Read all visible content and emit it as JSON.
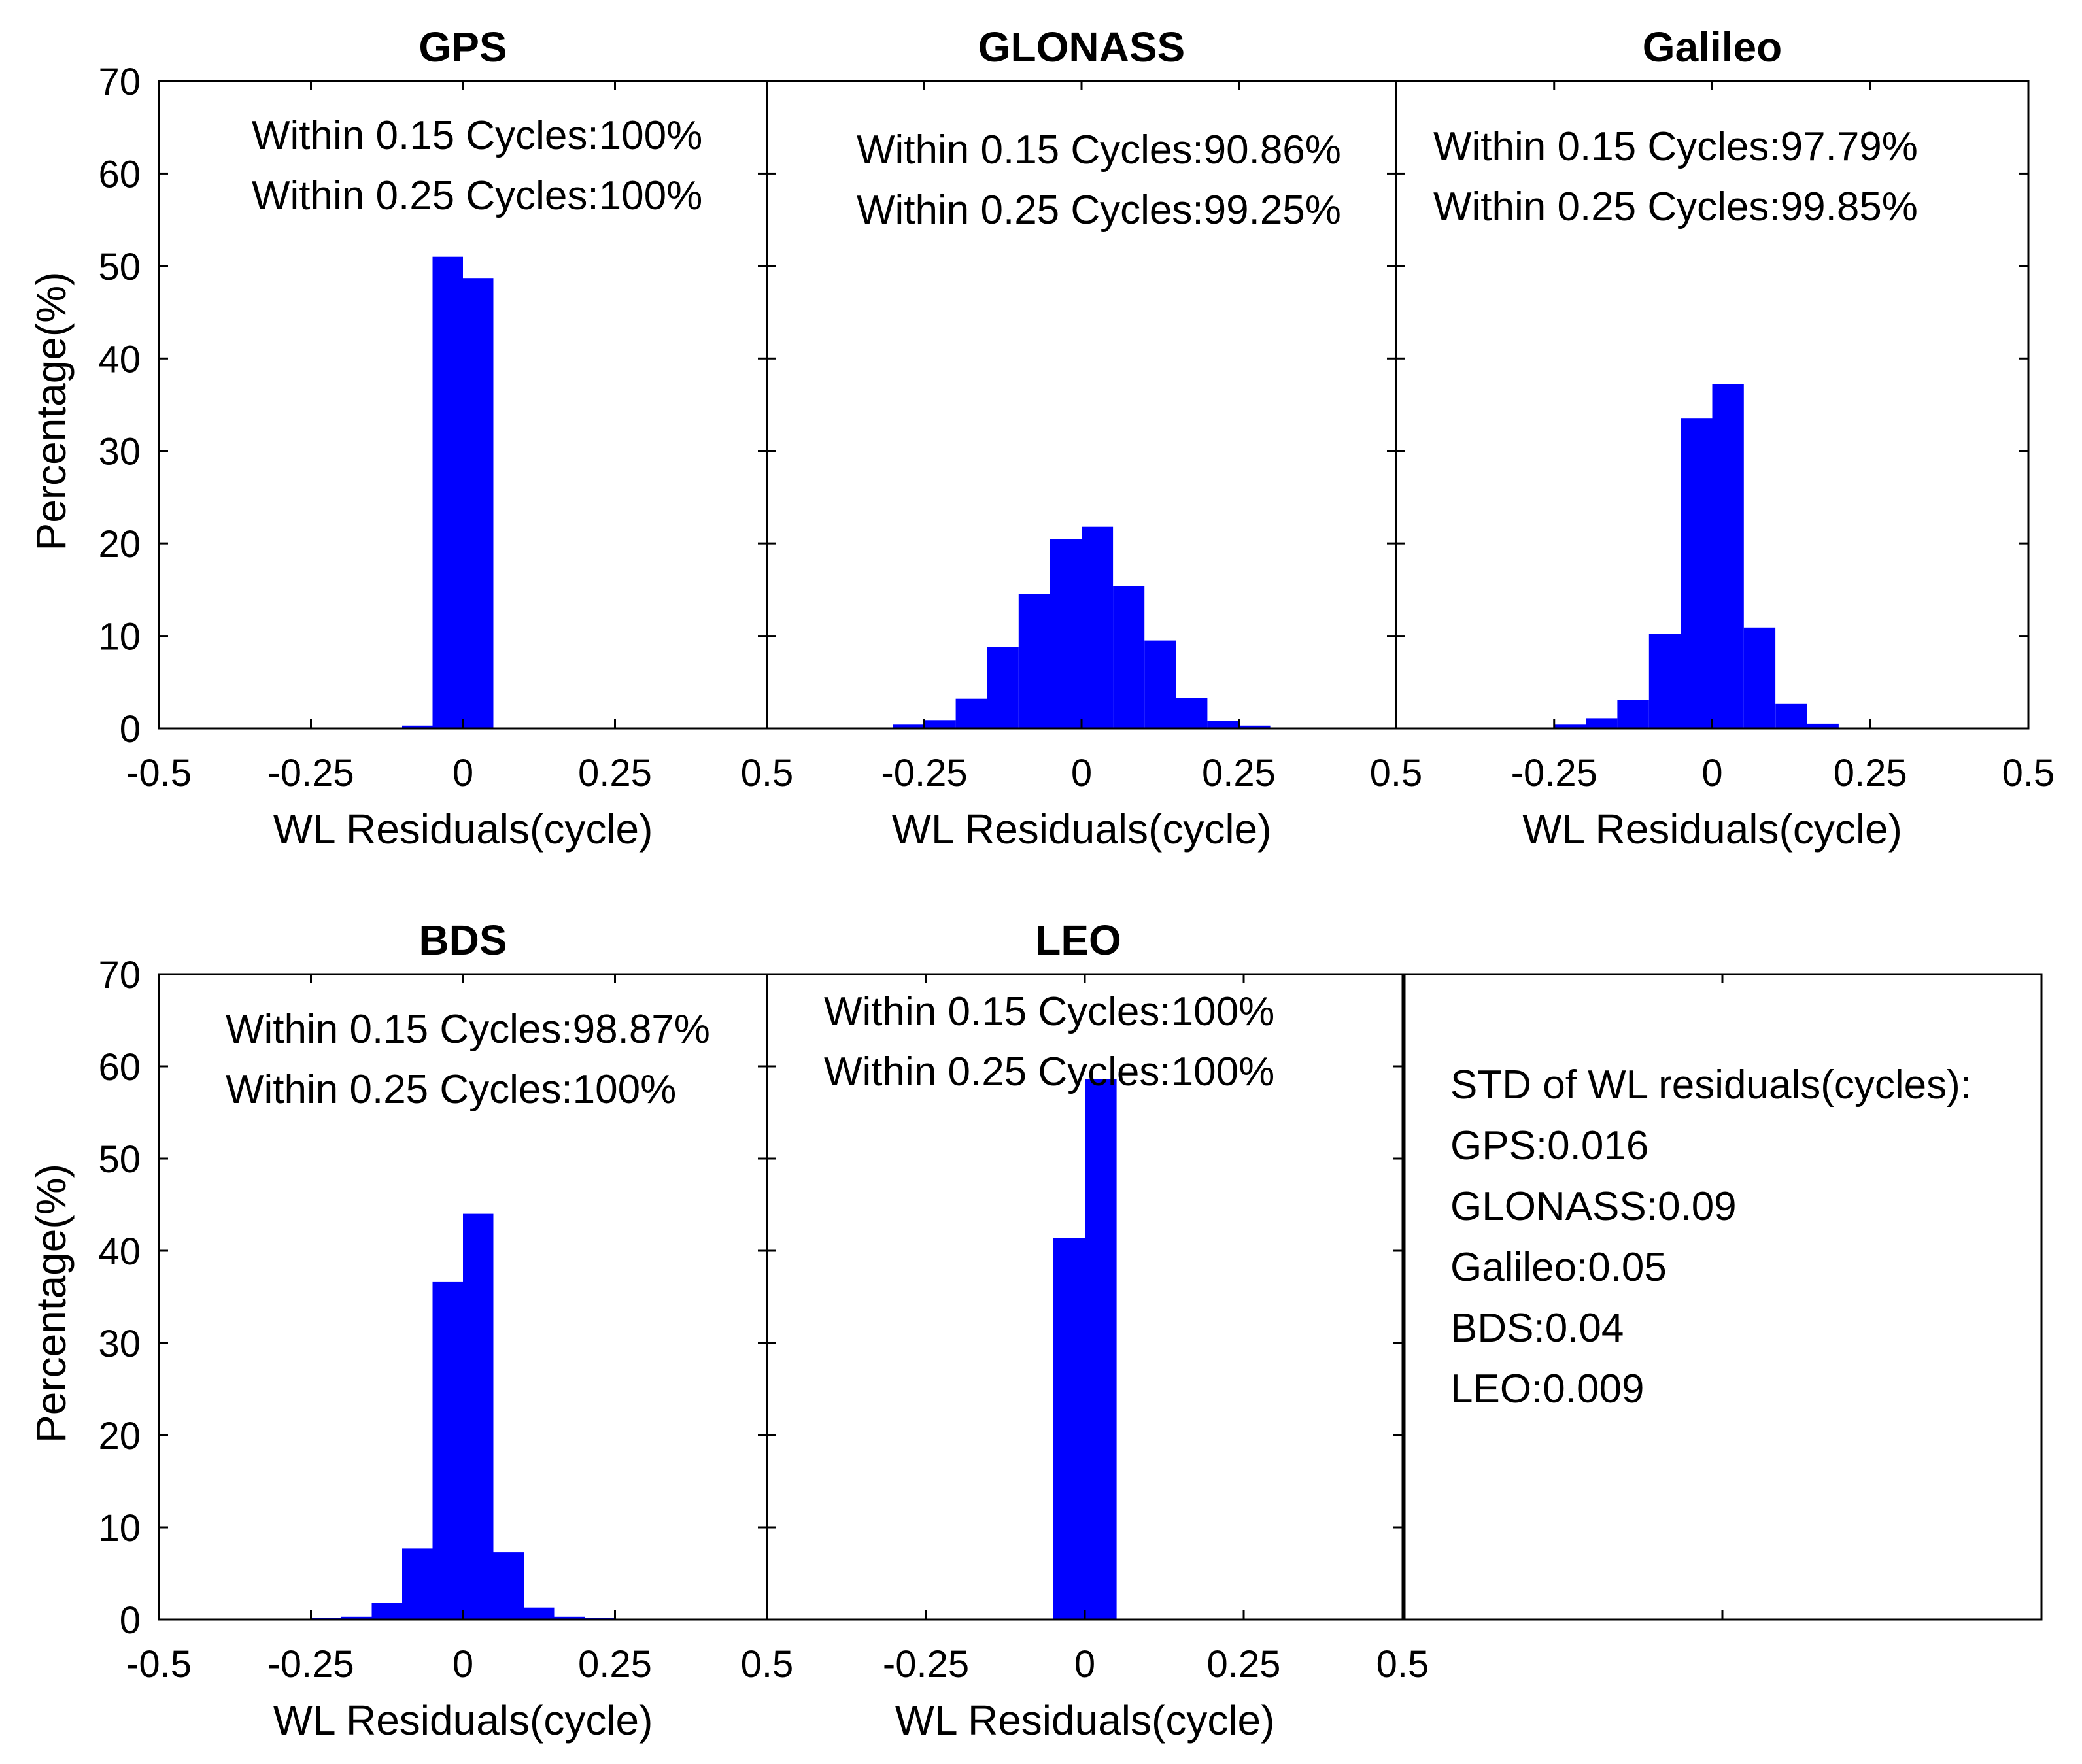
{
  "chart_data": [
    {
      "type": "bar",
      "title": "GPS",
      "xlabel": "WL Residuals(cycle)",
      "ylabel": "Percentage(%)",
      "xlim": [
        -0.5,
        0.5
      ],
      "ylim": [
        0,
        70
      ],
      "xticks": [
        "-0.5",
        "-0.25",
        "0",
        "0.25",
        "0.5"
      ],
      "yticks": [
        "0",
        "10",
        "20",
        "30",
        "40",
        "50",
        "60",
        "70"
      ],
      "bin_width": 0.05,
      "bin_centers": [
        -0.075,
        -0.025,
        0.025
      ],
      "values": [
        0.3,
        51.0,
        48.7
      ],
      "annotations": [
        "Within 0.15 Cycles:100%",
        "Within 0.25 Cycles:100%"
      ]
    },
    {
      "type": "bar",
      "title": "GLONASS",
      "xlabel": "WL Residuals(cycle)",
      "ylabel": "",
      "xlim": [
        -0.5,
        0.5
      ],
      "ylim": [
        0,
        70
      ],
      "xticks": [
        "",
        "-0.25",
        "0",
        "0.25",
        "0.5"
      ],
      "yticks": [],
      "bin_width": 0.05,
      "bin_centers": [
        -0.325,
        -0.275,
        -0.225,
        -0.175,
        -0.125,
        -0.075,
        -0.025,
        0.025,
        0.075,
        0.125,
        0.175,
        0.225,
        0.275,
        0.325
      ],
      "values": [
        0.1,
        0.4,
        0.9,
        3.2,
        8.8,
        14.5,
        20.5,
        21.8,
        15.4,
        9.5,
        3.3,
        0.8,
        0.3,
        0.1
      ],
      "annotations": [
        "Within 0.15 Cycles:90.86%",
        "Within 0.25 Cycles:99.25%"
      ]
    },
    {
      "type": "bar",
      "title": "Galileo",
      "xlabel": "WL Residuals(cycle)",
      "ylabel": "",
      "xlim": [
        -0.5,
        0.5
      ],
      "ylim": [
        0,
        70
      ],
      "xticks": [
        "",
        "-0.25",
        "0",
        "0.25",
        "0.5"
      ],
      "yticks": [],
      "bin_width": 0.05,
      "bin_centers": [
        -0.225,
        -0.175,
        -0.125,
        -0.075,
        -0.025,
        0.025,
        0.075,
        0.125,
        0.175
      ],
      "values": [
        0.4,
        1.1,
        3.1,
        10.2,
        33.5,
        37.2,
        10.9,
        2.7,
        0.5
      ],
      "annotations": [
        "Within 0.15 Cycles:97.79%",
        "Within 0.25 Cycles:99.85%"
      ]
    },
    {
      "type": "bar",
      "title": "BDS",
      "xlabel": "WL Residuals(cycle)",
      "ylabel": "Percentage(%)",
      "xlim": [
        -0.5,
        0.5
      ],
      "ylim": [
        0,
        70
      ],
      "xticks": [
        "-0.5",
        "-0.25",
        "0",
        "0.25",
        "0.5"
      ],
      "yticks": [
        "0",
        "10",
        "20",
        "30",
        "40",
        "50",
        "60",
        "70"
      ],
      "bin_width": 0.05,
      "bin_centers": [
        -0.225,
        -0.175,
        -0.125,
        -0.075,
        -0.025,
        0.025,
        0.075,
        0.125,
        0.175,
        0.225
      ],
      "values": [
        0.2,
        0.3,
        1.8,
        7.7,
        36.6,
        44.0,
        7.3,
        1.3,
        0.3,
        0.2
      ],
      "annotations": [
        "Within 0.15 Cycles:98.87%",
        "Within 0.25 Cycles:100%"
      ]
    },
    {
      "type": "bar",
      "title": "LEO",
      "xlabel": "WL Residuals(cycle)",
      "ylabel": "",
      "xlim": [
        -0.5,
        0.5
      ],
      "ylim": [
        0,
        70
      ],
      "xticks": [
        "",
        "-0.25",
        "0",
        "0.25",
        "0.5"
      ],
      "yticks": [],
      "bin_width": 0.05,
      "bin_centers": [
        -0.025,
        0.025
      ],
      "values": [
        41.4,
        58.6
      ],
      "annotations": [
        "Within 0.15 Cycles:100%",
        "Within 0.25 Cycles:100%"
      ]
    }
  ],
  "std_box": {
    "heading": "STD of WL residuals(cycles):",
    "lines": [
      "GPS:0.016",
      "GLONASS:0.09",
      "Galileo:0.05",
      "BDS:0.04",
      "LEO:0.009"
    ]
  },
  "colors": {
    "bars": "#0000ff",
    "axes": "#000000"
  }
}
